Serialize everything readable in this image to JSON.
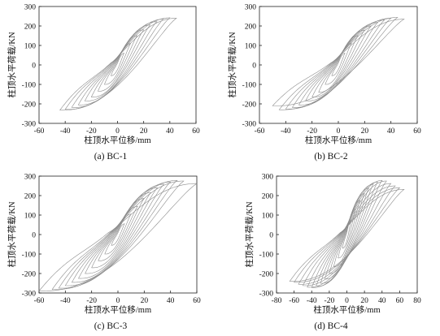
{
  "figure": {
    "panels": [
      {
        "caption": "(a) BC-1",
        "chart_data": {
          "type": "line",
          "ylabel": "柱顶水平荷载/KN",
          "xlabel": "柱顶水平位移/mm",
          "xlim": [
            -60,
            60
          ],
          "ylim": [
            -300,
            300
          ],
          "xticks": [
            -60,
            -40,
            -20,
            0,
            20,
            40,
            60
          ],
          "yticks": [
            -300,
            -200,
            -100,
            0,
            100,
            200,
            300
          ],
          "cycles": [
            {
              "dpos": 5,
              "fpos": 60,
              "dneg": -5,
              "fneg": -55
            },
            {
              "dpos": 10,
              "fpos": 110,
              "dneg": -10,
              "fneg": -100
            },
            {
              "dpos": 15,
              "fpos": 150,
              "dneg": -15,
              "fneg": -135
            },
            {
              "dpos": 20,
              "fpos": 180,
              "dneg": -20,
              "fneg": -165
            },
            {
              "dpos": 25,
              "fpos": 205,
              "dneg": -25,
              "fneg": -185
            },
            {
              "dpos": 30,
              "fpos": 222,
              "dneg": -30,
              "fneg": -205
            },
            {
              "dpos": 35,
              "fpos": 235,
              "dneg": -35,
              "fneg": -218
            },
            {
              "dpos": 40,
              "fpos": 242,
              "dneg": -40,
              "fneg": -228
            },
            {
              "dpos": 45,
              "fpos": 240,
              "dneg": -44,
              "fneg": -232
            }
          ]
        }
      },
      {
        "caption": "(b) BC-2",
        "chart_data": {
          "type": "line",
          "ylabel": "柱顶水平荷载/KN",
          "xlabel": "柱顶水平位移/mm",
          "xlim": [
            -60,
            60
          ],
          "ylim": [
            -300,
            300
          ],
          "xticks": [
            -60,
            -40,
            -20,
            0,
            20,
            40,
            60
          ],
          "yticks": [
            -300,
            -200,
            -100,
            0,
            100,
            200,
            300
          ],
          "cycles": [
            {
              "dpos": 5,
              "fpos": 60,
              "dneg": -5,
              "fneg": -55
            },
            {
              "dpos": 10,
              "fpos": 110,
              "dneg": -10,
              "fneg": -100
            },
            {
              "dpos": 15,
              "fpos": 150,
              "dneg": -15,
              "fneg": -140
            },
            {
              "dpos": 20,
              "fpos": 178,
              "dneg": -20,
              "fneg": -165
            },
            {
              "dpos": 25,
              "fpos": 200,
              "dneg": -25,
              "fneg": -185
            },
            {
              "dpos": 30,
              "fpos": 218,
              "dneg": -30,
              "fneg": -205
            },
            {
              "dpos": 35,
              "fpos": 230,
              "dneg": -35,
              "fneg": -218
            },
            {
              "dpos": 40,
              "fpos": 240,
              "dneg": -40,
              "fneg": -226
            },
            {
              "dpos": 45,
              "fpos": 244,
              "dneg": -45,
              "fneg": -230
            },
            {
              "dpos": 50,
              "fpos": 235,
              "dneg": -50,
              "fneg": -210
            }
          ]
        }
      },
      {
        "caption": "(c) BC-3",
        "chart_data": {
          "type": "line",
          "ylabel": "柱顶水平荷载/KN",
          "xlabel": "柱顶水平位移/mm",
          "xlim": [
            -60,
            60
          ],
          "ylim": [
            -300,
            300
          ],
          "xticks": [
            -60,
            -40,
            -20,
            0,
            20,
            40,
            60
          ],
          "yticks": [
            -300,
            -200,
            -100,
            0,
            100,
            200,
            300
          ],
          "cycles": [
            {
              "dpos": 5,
              "fpos": 55,
              "dneg": -5,
              "fneg": -55
            },
            {
              "dpos": 10,
              "fpos": 105,
              "dneg": -10,
              "fneg": -100
            },
            {
              "dpos": 15,
              "fpos": 145,
              "dneg": -15,
              "fneg": -135
            },
            {
              "dpos": 20,
              "fpos": 185,
              "dneg": -20,
              "fneg": -170
            },
            {
              "dpos": 25,
              "fpos": 215,
              "dneg": -25,
              "fneg": -200
            },
            {
              "dpos": 30,
              "fpos": 240,
              "dneg": -30,
              "fneg": -225
            },
            {
              "dpos": 35,
              "fpos": 258,
              "dneg": -35,
              "fneg": -245
            },
            {
              "dpos": 40,
              "fpos": 270,
              "dneg": -40,
              "fneg": -262
            },
            {
              "dpos": 45,
              "fpos": 278,
              "dneg": -45,
              "fneg": -275
            },
            {
              "dpos": 50,
              "fpos": 275,
              "dneg": -50,
              "fneg": -282
            },
            {
              "dpos": 60,
              "fpos": 262,
              "dneg": -60,
              "fneg": -290
            }
          ]
        }
      },
      {
        "caption": "(d) BC-4",
        "chart_data": {
          "type": "line",
          "ylabel": "柱顶水平荷载/KN",
          "xlabel": "柱顶水平位移/mm",
          "xlim": [
            -80,
            80
          ],
          "ylim": [
            -300,
            300
          ],
          "xticks": [
            -80,
            -60,
            -40,
            -20,
            0,
            20,
            40,
            60,
            80
          ],
          "yticks": [
            -300,
            -200,
            -100,
            0,
            100,
            200,
            300
          ],
          "cycles": [
            {
              "dpos": 5,
              "fpos": 75,
              "dneg": -5,
              "fneg": -70
            },
            {
              "dpos": 10,
              "fpos": 130,
              "dneg": -10,
              "fneg": -120
            },
            {
              "dpos": 15,
              "fpos": 175,
              "dneg": -15,
              "fneg": -165
            },
            {
              "dpos": 20,
              "fpos": 210,
              "dneg": -20,
              "fneg": -200
            },
            {
              "dpos": 25,
              "fpos": 238,
              "dneg": -25,
              "fneg": -228
            },
            {
              "dpos": 30,
              "fpos": 258,
              "dneg": -30,
              "fneg": -250
            },
            {
              "dpos": 35,
              "fpos": 270,
              "dneg": -35,
              "fneg": -265
            },
            {
              "dpos": 40,
              "fpos": 278,
              "dneg": -40,
              "fneg": -272
            },
            {
              "dpos": 45,
              "fpos": 275,
              "dneg": -45,
              "fneg": -270
            },
            {
              "dpos": 50,
              "fpos": 262,
              "dneg": -50,
              "fneg": -262
            },
            {
              "dpos": 55,
              "fpos": 250,
              "dneg": -55,
              "fneg": -255
            },
            {
              "dpos": 60,
              "fpos": 240,
              "dneg": -60,
              "fneg": -245
            },
            {
              "dpos": 65,
              "fpos": 232,
              "dneg": -65,
              "fneg": -240
            }
          ]
        }
      }
    ],
    "colors": {
      "loop": "#8c8c8c",
      "axis": "#222222",
      "text": "#111111"
    }
  }
}
